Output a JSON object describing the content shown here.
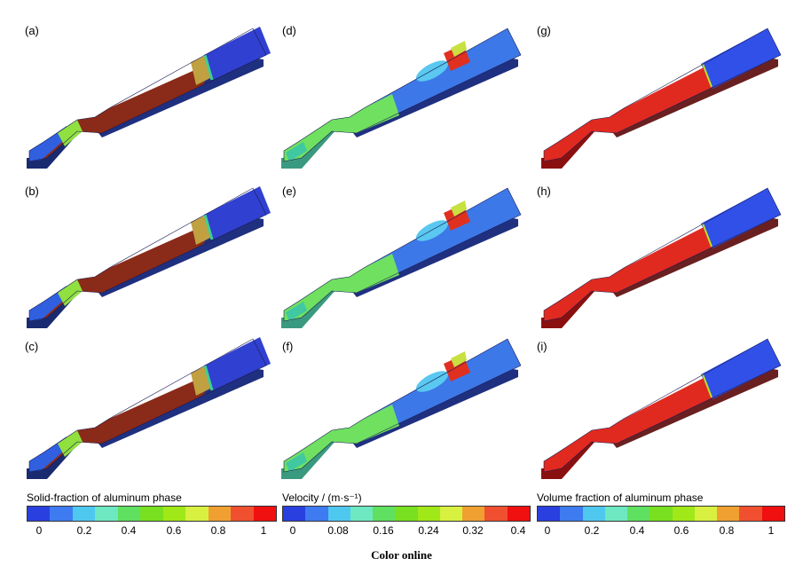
{
  "panels": [
    {
      "id": "a",
      "label": "(a)",
      "field": "solid"
    },
    {
      "id": "b",
      "label": "(b)",
      "field": "solid"
    },
    {
      "id": "c",
      "label": "(c)",
      "field": "solid"
    },
    {
      "id": "d",
      "label": "(d)",
      "field": "velocity"
    },
    {
      "id": "e",
      "label": "(e)",
      "field": "velocity"
    },
    {
      "id": "f",
      "label": "(f)",
      "field": "velocity"
    },
    {
      "id": "g",
      "label": "(g)",
      "field": "volume"
    },
    {
      "id": "h",
      "label": "(h)",
      "field": "volume"
    },
    {
      "id": "i",
      "label": "(i)",
      "field": "volume"
    }
  ],
  "colorbars": [
    {
      "title": "Solid-fraction of aluminum phase",
      "ticks": [
        "0",
        "0.2",
        "0.4",
        "0.6",
        "0.8",
        "1"
      ]
    },
    {
      "title": "Velocity / (m·s⁻¹)",
      "ticks": [
        "0",
        "0.08",
        "0.16",
        "0.24",
        "0.32",
        "0.4"
      ]
    },
    {
      "title": "Volume fraction of aluminum phase",
      "ticks": [
        "0",
        "0.2",
        "0.4",
        "0.6",
        "0.8",
        "1"
      ]
    }
  ],
  "colormap": [
    "#2a3fe0",
    "#3f7bf0",
    "#4fc8f0",
    "#6ee8c0",
    "#60e060",
    "#78e020",
    "#a0e818",
    "#d8f040",
    "#f0a030",
    "#f05030",
    "#f01010"
  ],
  "footer": "Color online"
}
